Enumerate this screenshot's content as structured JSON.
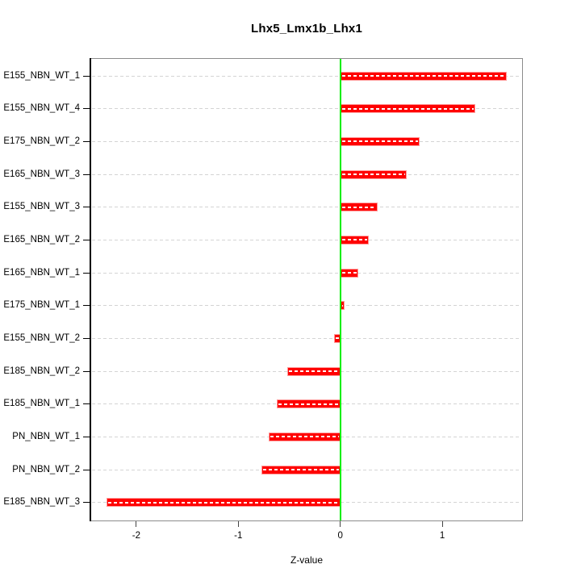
{
  "chart_data": {
    "type": "bar",
    "orientation": "horizontal",
    "title": "Lhx5_Lmx1b_Lhx1",
    "xlabel": "Z-value",
    "ylabel": "",
    "legend": "none",
    "categories": [
      "E155_NBN_WT_1",
      "E155_NBN_WT_4",
      "E175_NBN_WT_2",
      "E165_NBN_WT_3",
      "E155_NBN_WT_3",
      "E165_NBN_WT_2",
      "E165_NBN_WT_1",
      "E175_NBN_WT_1",
      "E155_NBN_WT_2",
      "E185_NBN_WT_2",
      "E185_NBN_WT_1",
      "PN_NBN_WT_1",
      "PN_NBN_WT_2",
      "E185_NBN_WT_3"
    ],
    "values": [
      1.63,
      1.32,
      0.78,
      0.65,
      0.37,
      0.28,
      0.18,
      0.04,
      -0.06,
      -0.52,
      -0.62,
      -0.7,
      -0.77,
      -2.29
    ],
    "xticks": [
      "-2",
      "-1",
      "0",
      "1"
    ],
    "xtick_values": [
      -2,
      -1,
      0,
      1
    ],
    "xlim": [
      -2.45,
      1.79
    ],
    "zero_line_x": 0,
    "grid": {
      "horizontal_dashed_per_category": true
    },
    "colors": {
      "bar_fill": "#ff0000",
      "bar_edge": "#ff9999",
      "bar_inner_dash": "#ffffff",
      "zero_line": "#00ee00",
      "grid_line": "#d4d4d4",
      "box_border": "#8c8c8c",
      "axis_line": "#000000",
      "text": "#000000",
      "background": "#ffffff"
    }
  }
}
